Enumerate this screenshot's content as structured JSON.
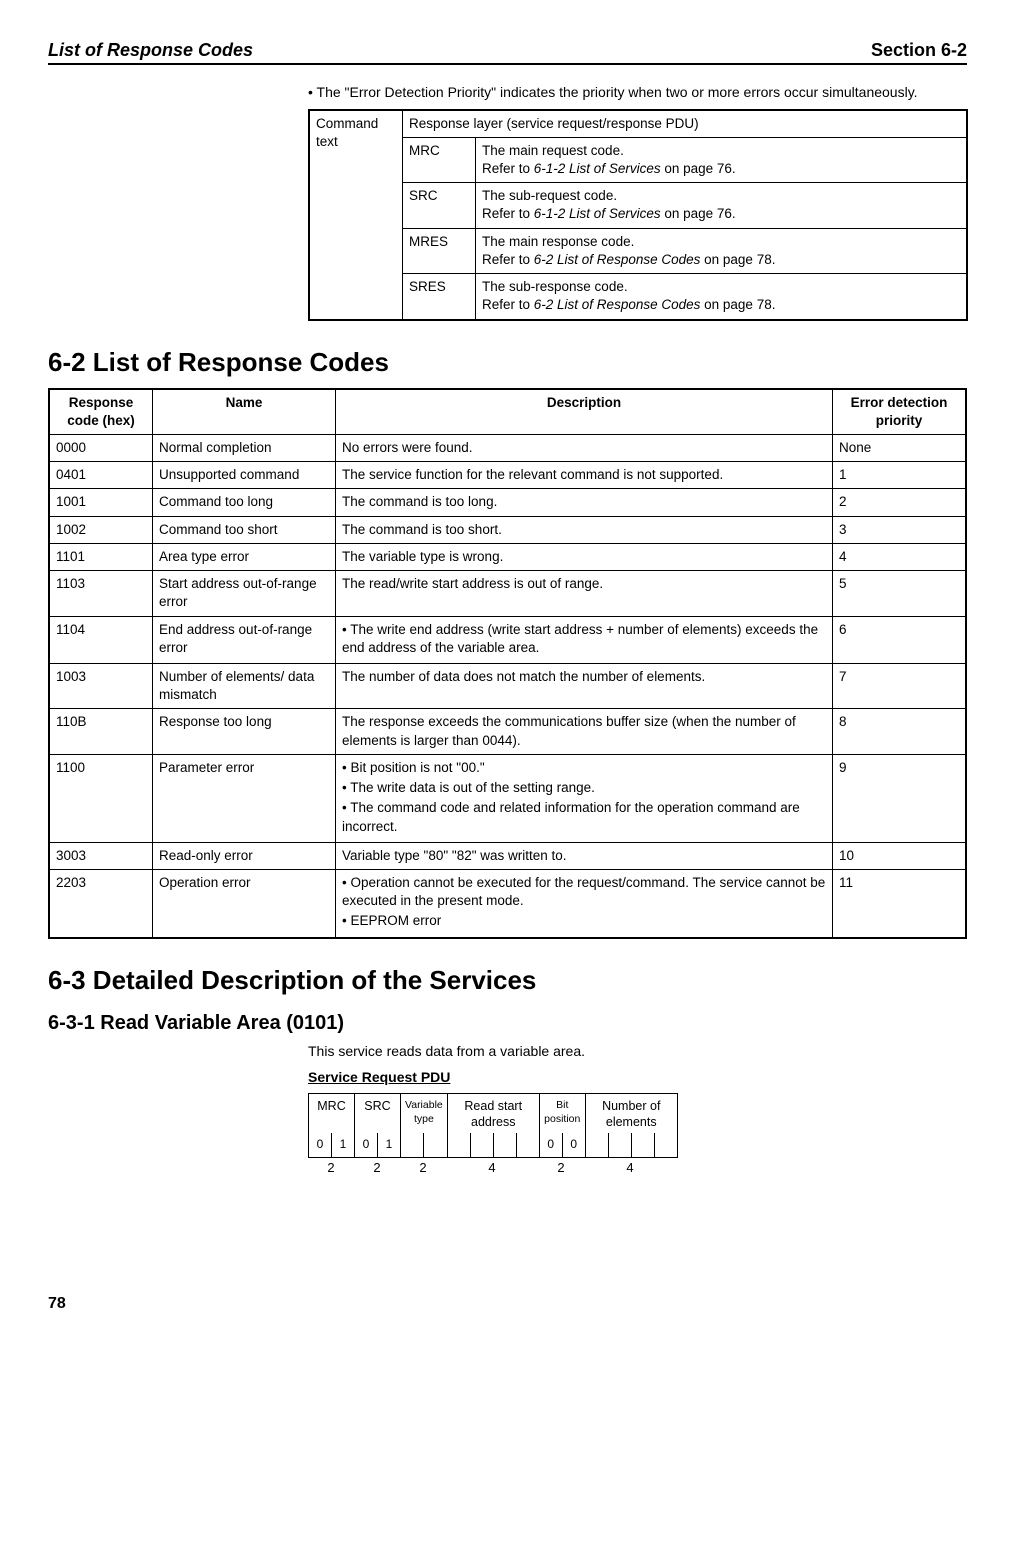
{
  "header": {
    "left": "List of Response Codes",
    "right": "Section 6-2"
  },
  "intro_bullet": "The \"Error Detection Priority\" indicates the priority when two or more errors occur simultaneously.",
  "cmd_table": {
    "row_label": "Command text",
    "top_span": "Response layer (service request/response PDU)",
    "rows": [
      {
        "code": "MRC",
        "desc1": "The main request code.",
        "desc2_pre": "Refer to ",
        "desc2_ital": "6-1-2 List of Services",
        "desc2_post": " on page 76."
      },
      {
        "code": "SRC",
        "desc1": "The sub-request code.",
        "desc2_pre": "Refer to ",
        "desc2_ital": "6-1-2 List of Services",
        "desc2_post": " on page 76."
      },
      {
        "code": "MRES",
        "desc1": "The main response code.",
        "desc2_pre": "Refer to ",
        "desc2_ital": "6-2 List of Response Codes",
        "desc2_post": " on page 78."
      },
      {
        "code": "SRES",
        "desc1": "The sub-response code.",
        "desc2_pre": "Refer to ",
        "desc2_ital": "6-2 List of Response Codes",
        "desc2_post": " on page 78."
      }
    ]
  },
  "section_6_2": "6-2    List of Response Codes",
  "resp_headers": [
    "Response code (hex)",
    "Name",
    "Description",
    "Error detection priority"
  ],
  "resp_rows": [
    {
      "code": "0000",
      "name": "Normal completion",
      "desc": [
        "No errors were found."
      ],
      "prio": "None"
    },
    {
      "code": "0401",
      "name": "Unsupported command",
      "desc": [
        "The service function for the relevant command is not supported."
      ],
      "prio": "1"
    },
    {
      "code": "1001",
      "name": "Command too long",
      "desc": [
        "The command is too long."
      ],
      "prio": "2"
    },
    {
      "code": "1002",
      "name": "Command too short",
      "desc": [
        "The command is too short."
      ],
      "prio": "3"
    },
    {
      "code": "1101",
      "name": "Area type error",
      "desc": [
        "The variable type is wrong."
      ],
      "prio": "4"
    },
    {
      "code": "1103",
      "name": "Start address out-of-range error",
      "desc": [
        "The read/write start address is out of range."
      ],
      "prio": "5"
    },
    {
      "code": "1104",
      "name": "End address out-of-range error",
      "desc_bullets": [
        "The write end address (write start address + number of elements) exceeds the end address of the variable area."
      ],
      "prio": "6"
    },
    {
      "code": "1003",
      "name": "Number of elements/ data mismatch",
      "desc": [
        "The number of data does not match the number of elements."
      ],
      "prio": "7"
    },
    {
      "code": "110B",
      "name": "Response too long",
      "desc": [
        "The response exceeds the communications buffer size (when the number of elements is larger than 0044)."
      ],
      "prio": "8"
    },
    {
      "code": "1100",
      "name": "Parameter error",
      "desc_bullets": [
        "Bit position is not \"00.\"",
        "The write data is out of the setting range.",
        "The command code and related information for the operation command are incorrect."
      ],
      "prio": "9"
    },
    {
      "code": "3003",
      "name": "Read-only error",
      "desc": [
        "Variable type \"80\" \"82\" was written to."
      ],
      "prio": "10"
    },
    {
      "code": "2203",
      "name": "Operation error",
      "desc_bullets": [
        "Operation cannot be executed for the request/command. The service cannot be executed in the present mode.",
        "EEPROM error"
      ],
      "prio": "11"
    }
  ],
  "section_6_3": "6-3    Detailed Description of the Services",
  "section_6_3_1": "6-3-1    Read Variable Area (0101)",
  "body_6_3_1": "This service reads data from a variable area.",
  "srpdu_title": "Service Request PDU",
  "pdu": {
    "labels": [
      "MRC",
      "SRC",
      "Variable type",
      "Read start address",
      "Bit position",
      "Number of elements"
    ],
    "cells": [
      "0",
      "1",
      "0",
      "1",
      "",
      "",
      "",
      "",
      "",
      "",
      "0",
      "0",
      "",
      "",
      "",
      ""
    ],
    "widths": [
      "2",
      "2",
      "2",
      "4",
      "2",
      "4"
    ]
  },
  "page_number": "78"
}
